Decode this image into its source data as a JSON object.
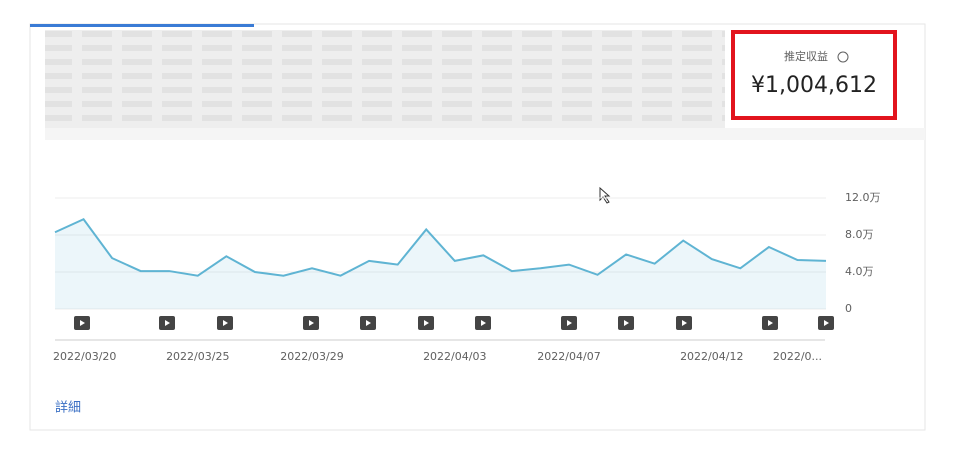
{
  "revenue_card": {
    "label": "推定収益",
    "value": "¥1,004,612"
  },
  "link": "詳細",
  "chart_data": {
    "type": "line",
    "categories": [
      "2022/03/20",
      null,
      null,
      null,
      null,
      "2022/03/25",
      null,
      null,
      null,
      "2022/03/29",
      null,
      null,
      null,
      null,
      "2022/04/03",
      null,
      null,
      null,
      "2022/04/07",
      null,
      null,
      null,
      null,
      "2022/04/12",
      null,
      null,
      "2022/0...",
      null
    ],
    "values": [
      83000,
      97000,
      55000,
      41000,
      41000,
      36000,
      57000,
      40000,
      36000,
      44000,
      36000,
      52000,
      48000,
      86000,
      52000,
      58000,
      41000,
      44000,
      48000,
      37000,
      59000,
      49000,
      74000,
      54000,
      44000,
      67000,
      53000,
      52000
    ],
    "color": "#5fb4d3",
    "ylim": [
      0,
      120000
    ],
    "yticks": [
      0,
      {
        "value": 40000,
        "label": "4.0万"
      },
      {
        "value": 80000,
        "label": "8.0万"
      },
      {
        "value": 120000,
        "label": "12.0万"
      }
    ],
    "grid": true
  }
}
